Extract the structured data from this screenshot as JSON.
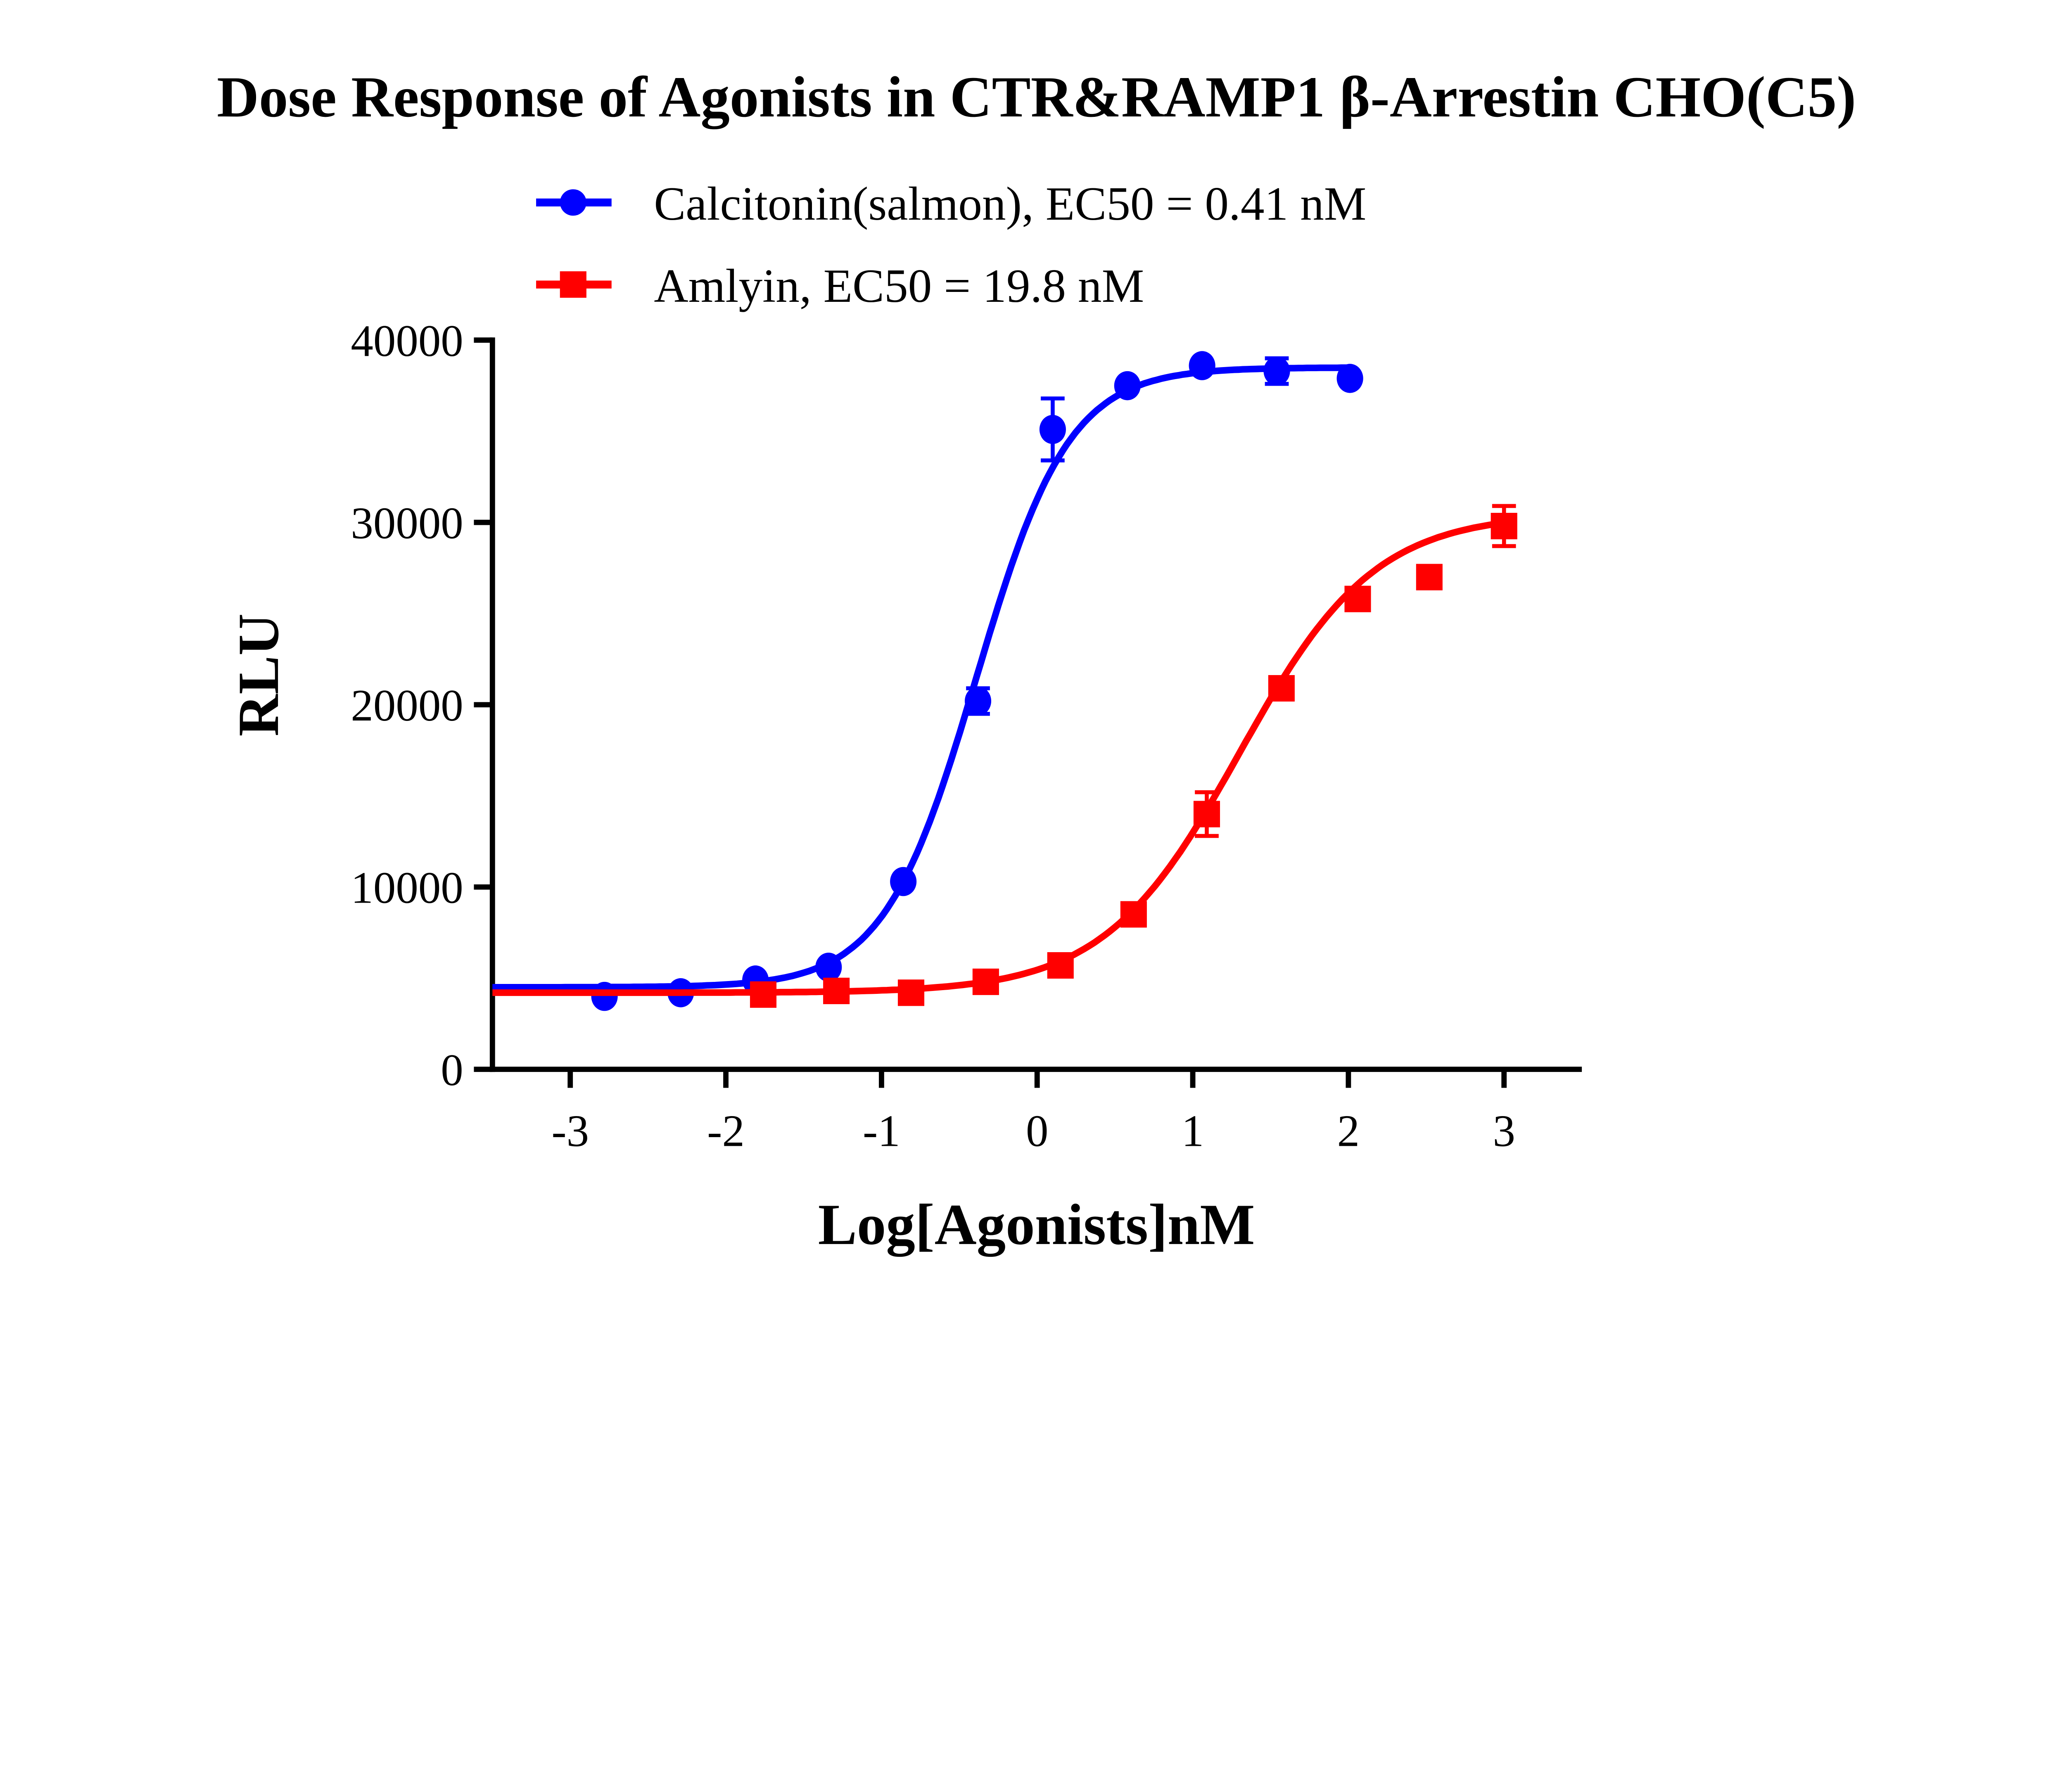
{
  "chart_data": {
    "type": "scatter",
    "title": "Dose Response of Agonists in CTR&RAMP1 β-Arrestin CHO(C5)",
    "xlabel": "Log[Agonists]nM",
    "ylabel": "RLU",
    "xlim": [
      -3.5,
      3.5
    ],
    "ylim": [
      0,
      40000
    ],
    "xticks": [
      -3,
      -2,
      -1,
      0,
      1,
      2,
      3
    ],
    "yticks": [
      0,
      10000,
      20000,
      30000,
      40000
    ],
    "grid": false,
    "legend_position": "top",
    "series": [
      {
        "name": "Calcitonin(salmon), EC50 = 0.41 nM",
        "color": "#0000ff",
        "marker": "circle",
        "x": [
          -2.78,
          -2.29,
          -1.81,
          -1.34,
          -0.86,
          -0.38,
          0.1,
          0.58,
          1.06,
          1.54,
          2.01
        ],
        "y": [
          4000,
          4200,
          4900,
          5600,
          10300,
          20200,
          35100,
          37500,
          38600,
          38300,
          37900
        ],
        "error": [
          0,
          0,
          0,
          0,
          0,
          700,
          1700,
          0,
          0,
          700,
          0
        ],
        "fit": {
          "model": "4PL",
          "bottom": 4500,
          "top": 38500,
          "logEC50": -0.39,
          "hill": 1.46,
          "x_range": [
            -3.5,
            2.01
          ]
        }
      },
      {
        "name": "Amlyin, EC50 = 19.8 nM",
        "color": "#ff0000",
        "marker": "square",
        "x": [
          -1.76,
          -1.29,
          -0.81,
          -0.33,
          0.15,
          0.62,
          1.09,
          1.57,
          2.06,
          2.52,
          3.0
        ],
        "y": [
          4100,
          4300,
          4200,
          4800,
          5700,
          8500,
          14000,
          20900,
          25800,
          27000,
          29800
        ],
        "error": [
          0,
          0,
          0,
          0,
          0,
          0,
          1200,
          0,
          600,
          0,
          1100
        ],
        "fit": {
          "model": "4PL",
          "bottom": 4200,
          "top": 30500,
          "logEC50": 1.3,
          "hill": 1.0,
          "x_range": [
            -3.5,
            3.0
          ]
        }
      }
    ]
  }
}
